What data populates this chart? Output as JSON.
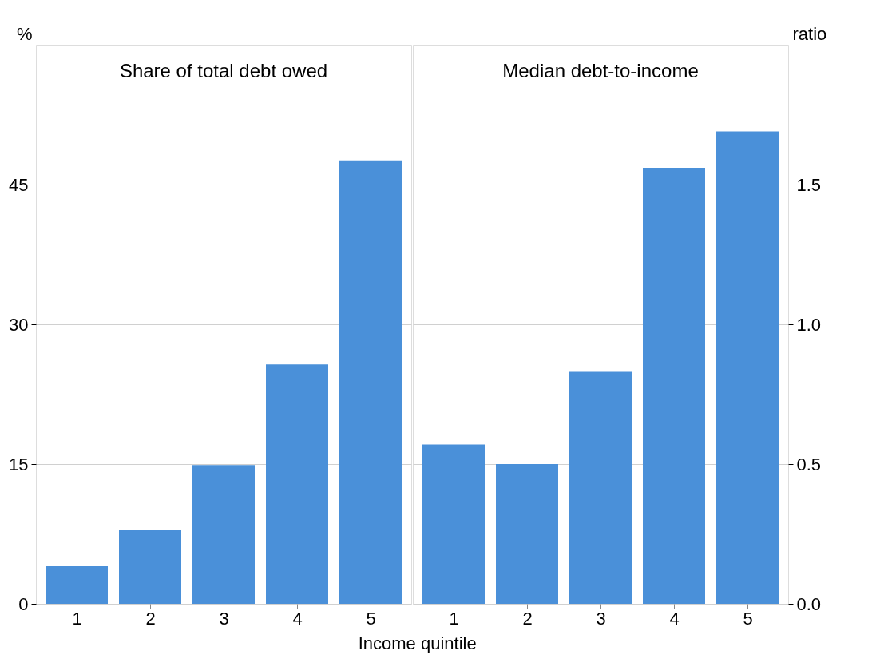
{
  "chart_data": [
    {
      "type": "bar",
      "title": "Share of total debt owed",
      "xlabel": "Income quintile",
      "ylabel": "%",
      "categories": [
        "1",
        "2",
        "3",
        "4",
        "5"
      ],
      "values": [
        4.1,
        7.9,
        14.9,
        25.7,
        47.6
      ],
      "color": "#4a90d9",
      "ylim": [
        0,
        60
      ],
      "yticks": [
        0,
        15,
        30,
        45
      ],
      "grid": "y"
    },
    {
      "type": "bar",
      "title": "Median debt-to-income",
      "ylabel": "ratio",
      "categories": [
        "1",
        "2",
        "3",
        "4",
        "5"
      ],
      "values": [
        0.57,
        0.5,
        0.83,
        1.56,
        1.69
      ],
      "color": "#4a90d9",
      "ylim": [
        0,
        2.0
      ],
      "yticks": [
        {
          "value": 0,
          "label": "0.0"
        },
        {
          "value": 0.5,
          "label": "0.5"
        },
        {
          "value": 1,
          "label": "1.0"
        },
        {
          "value": 1.5,
          "label": "1.5"
        }
      ],
      "grid": "y"
    }
  ]
}
